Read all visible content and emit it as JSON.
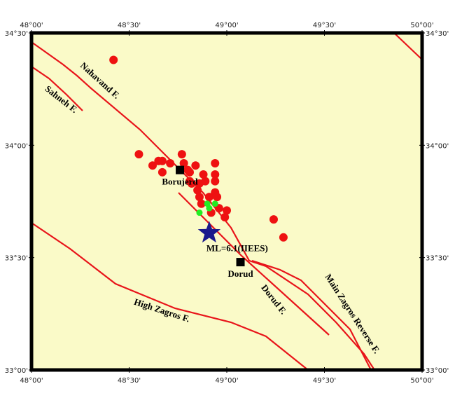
{
  "map": {
    "xlim": [
      48,
      50
    ],
    "ylim": [
      33,
      34.5
    ],
    "xticks": [
      {
        "value": 48,
        "label": "48°00'"
      },
      {
        "value": 48.5,
        "label": "48°30'"
      },
      {
        "value": 49,
        "label": "49°00'"
      },
      {
        "value": 49.5,
        "label": "49°30'"
      },
      {
        "value": 50,
        "label": "50°00'"
      }
    ],
    "yticks": [
      {
        "value": 33,
        "label": "33°00'"
      },
      {
        "value": 33.5,
        "label": "33°30'"
      },
      {
        "value": 34,
        "label": "34°00'"
      },
      {
        "value": 34.5,
        "label": "34°30'"
      }
    ],
    "red_events": {
      "color": "#ee1111",
      "lon": [
        48.42,
        48.55,
        48.62,
        48.65,
        48.67,
        48.67,
        48.71,
        48.77,
        48.78,
        48.8,
        48.81,
        48.84,
        48.81,
        48.82,
        48.85,
        48.86,
        48.89,
        48.88,
        48.94,
        48.94,
        48.94,
        48.94,
        48.86,
        48.91,
        48.95,
        48.87,
        48.96,
        49.0,
        48.99,
        48.92,
        49.24,
        49.29
      ],
      "lat": [
        34.38,
        33.96,
        33.91,
        33.93,
        33.93,
        33.88,
        33.92,
        33.96,
        33.92,
        33.89,
        33.88,
        33.91,
        33.84,
        33.83,
        33.8,
        33.83,
        33.84,
        33.87,
        33.92,
        33.87,
        33.84,
        33.79,
        33.77,
        33.77,
        33.77,
        33.74,
        33.72,
        33.71,
        33.68,
        33.7,
        33.67,
        33.59
      ]
    },
    "green_events": {
      "color": "#22ee22",
      "lon": [
        48.9,
        48.94,
        48.91,
        48.86
      ],
      "lat": [
        33.74,
        33.74,
        33.72,
        33.7
      ]
    },
    "mainshock": {
      "lon": 48.91,
      "lat": 33.61,
      "label": "ML=6.1(IIEES)",
      "color": "#1a1a8c"
    },
    "cities": [
      {
        "name": "Borujerd",
        "lon": 48.76,
        "lat": 33.89
      },
      {
        "name": "Dorud",
        "lon": 49.07,
        "lat": 33.48
      }
    ],
    "faults": [
      "Nahavand F.",
      "Sahneh F.",
      "Dorud F.",
      "Main Zagros Reverse F.",
      "High Zagros F."
    ]
  }
}
